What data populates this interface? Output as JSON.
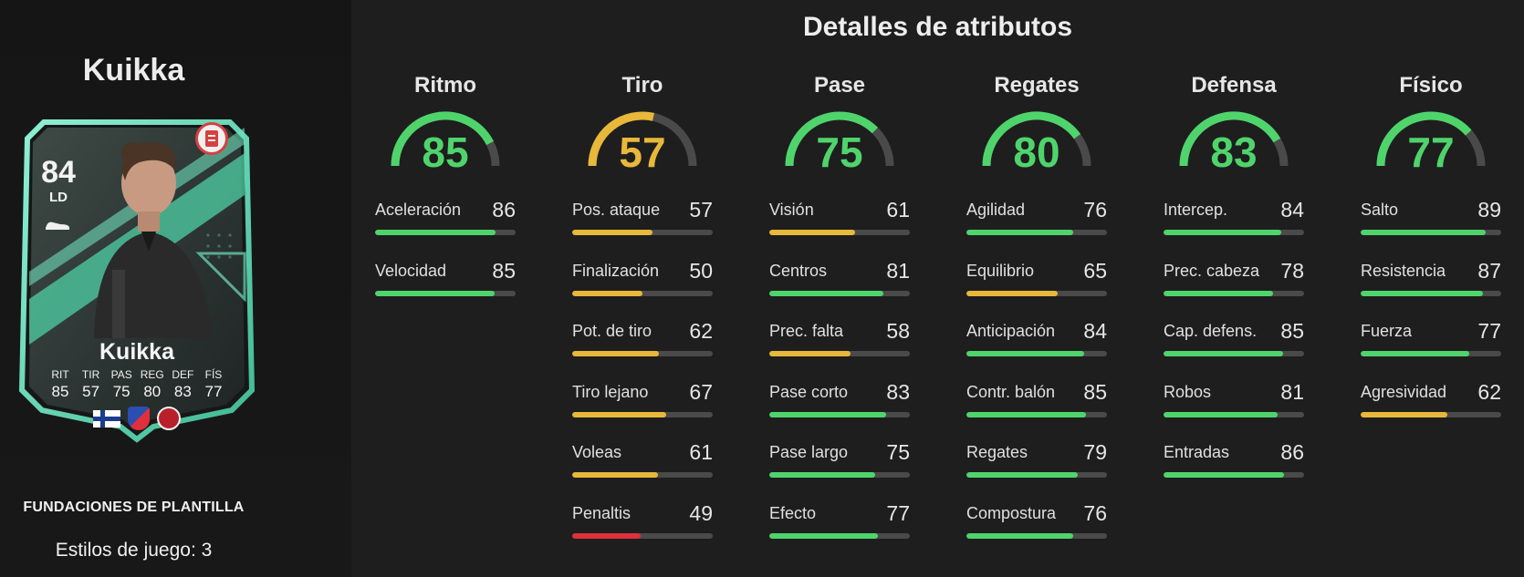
{
  "player": {
    "name": "Kuikka",
    "rating": "84",
    "position": "LD",
    "card_stats": [
      {
        "label": "RIT",
        "value": "85"
      },
      {
        "label": "TIR",
        "value": "57"
      },
      {
        "label": "PAS",
        "value": "75"
      },
      {
        "label": "REG",
        "value": "80"
      },
      {
        "label": "DEF",
        "value": "83"
      },
      {
        "label": "FÍS",
        "value": "77"
      }
    ],
    "squad_label": "FUNDACIONES DE PLANTILLA",
    "playstyles": "Estilos de juego: 3"
  },
  "colors": {
    "high": "#4fd46c",
    "mid": "#e8b83a",
    "low": "#e0303c",
    "track": "#4a4a4a",
    "card_accent": "#5fd8b2"
  },
  "attributes": {
    "title": "Detalles de atributos",
    "categories": [
      {
        "name": "Ritmo",
        "value": "85",
        "stats": [
          {
            "label": "Aceleración",
            "value": "86"
          },
          {
            "label": "Velocidad",
            "value": "85"
          }
        ]
      },
      {
        "name": "Tiro",
        "value": "57",
        "stats": [
          {
            "label": "Pos. ataque",
            "value": "57"
          },
          {
            "label": "Finalización",
            "value": "50"
          },
          {
            "label": "Pot. de tiro",
            "value": "62"
          },
          {
            "label": "Tiro lejano",
            "value": "67"
          },
          {
            "label": "Voleas",
            "value": "61"
          },
          {
            "label": "Penaltis",
            "value": "49"
          }
        ]
      },
      {
        "name": "Pase",
        "value": "75",
        "stats": [
          {
            "label": "Visión",
            "value": "61"
          },
          {
            "label": "Centros",
            "value": "81"
          },
          {
            "label": "Prec. falta",
            "value": "58"
          },
          {
            "label": "Pase corto",
            "value": "83"
          },
          {
            "label": "Pase largo",
            "value": "75"
          },
          {
            "label": "Efecto",
            "value": "77"
          }
        ]
      },
      {
        "name": "Regates",
        "value": "80",
        "stats": [
          {
            "label": "Agilidad",
            "value": "76"
          },
          {
            "label": "Equilibrio",
            "value": "65"
          },
          {
            "label": "Anticipación",
            "value": "84"
          },
          {
            "label": "Contr. balón",
            "value": "85"
          },
          {
            "label": "Regates",
            "value": "79"
          },
          {
            "label": "Compostura",
            "value": "76"
          }
        ]
      },
      {
        "name": "Defensa",
        "value": "83",
        "stats": [
          {
            "label": "Intercep.",
            "value": "84"
          },
          {
            "label": "Prec. cabeza",
            "value": "78"
          },
          {
            "label": "Cap. defens.",
            "value": "85"
          },
          {
            "label": "Robos",
            "value": "81"
          },
          {
            "label": "Entradas",
            "value": "86"
          }
        ]
      },
      {
        "name": "Físico",
        "value": "77",
        "stats": [
          {
            "label": "Salto",
            "value": "89"
          },
          {
            "label": "Resistencia",
            "value": "87"
          },
          {
            "label": "Fuerza",
            "value": "77"
          },
          {
            "label": "Agresividad",
            "value": "62"
          }
        ]
      }
    ]
  }
}
